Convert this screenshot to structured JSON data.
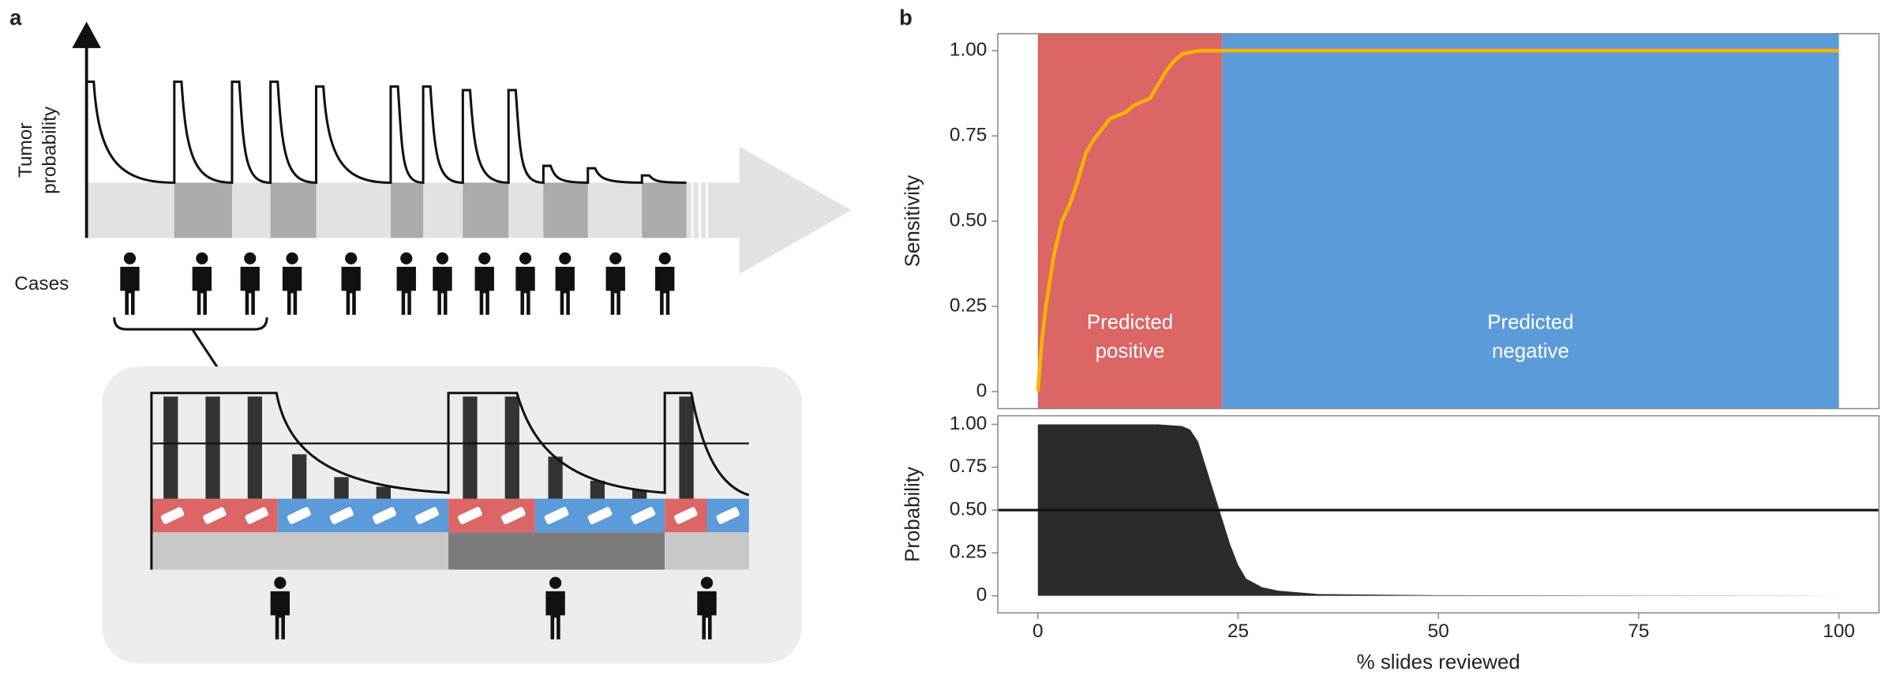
{
  "panel_labels": [
    "a",
    "b"
  ],
  "diagram": {
    "y_label": [
      "Tumor",
      "probability"
    ],
    "cases_label": "Cases"
  },
  "chart_data": [
    {
      "type": "line",
      "ylabel": "Sensitivity",
      "x": [
        0,
        0.5,
        1,
        2,
        3,
        4,
        5,
        6,
        7,
        8,
        9,
        10,
        11,
        12,
        14,
        15,
        16,
        17,
        18,
        20,
        100
      ],
      "values": [
        0,
        0.15,
        0.25,
        0.4,
        0.5,
        0.55,
        0.62,
        0.7,
        0.74,
        0.77,
        0.8,
        0.81,
        0.82,
        0.84,
        0.86,
        0.9,
        0.94,
        0.97,
        0.99,
        1.0,
        1.0
      ],
      "color": "#f5b400",
      "regions": [
        {
          "labels": [
            "Predicted",
            "positive"
          ],
          "range": [
            0,
            23
          ],
          "color": "#dc6565"
        },
        {
          "labels": [
            "Predicted",
            "negative"
          ],
          "range": [
            23,
            100
          ],
          "color": "#5b9bd9"
        }
      ],
      "xlim": [
        -5,
        105
      ],
      "ylim": [
        -0.05,
        1.05
      ],
      "yticks": [
        0,
        {
          "value": 0.25,
          "label": "0.25"
        },
        {
          "value": 0.5,
          "label": "0.50"
        },
        {
          "value": 0.75,
          "label": "0.75"
        },
        {
          "value": 1,
          "label": "1.00"
        }
      ]
    },
    {
      "type": "area",
      "ylabel": "Probability",
      "xlabel": "% slides reviewed",
      "x": [
        0,
        15,
        18,
        19,
        20,
        21,
        22,
        23,
        24,
        25,
        26,
        28,
        30,
        35,
        50,
        100
      ],
      "values": [
        1,
        1,
        0.99,
        0.97,
        0.9,
        0.75,
        0.6,
        0.45,
        0.3,
        0.18,
        0.1,
        0.05,
        0.03,
        0.01,
        0.003,
        0
      ],
      "color": "#2b2b2b",
      "hline": 0.5,
      "xlim": [
        -5,
        105
      ],
      "ylim": [
        -0.1,
        1.05
      ],
      "xticks": [
        0,
        25,
        50,
        75,
        100
      ],
      "yticks": [
        0,
        {
          "value": 0.25,
          "label": "0.25"
        },
        {
          "value": 0.5,
          "label": "0.50"
        },
        {
          "value": 0.75,
          "label": "0.75"
        },
        {
          "value": 1,
          "label": "1.00"
        }
      ]
    }
  ]
}
